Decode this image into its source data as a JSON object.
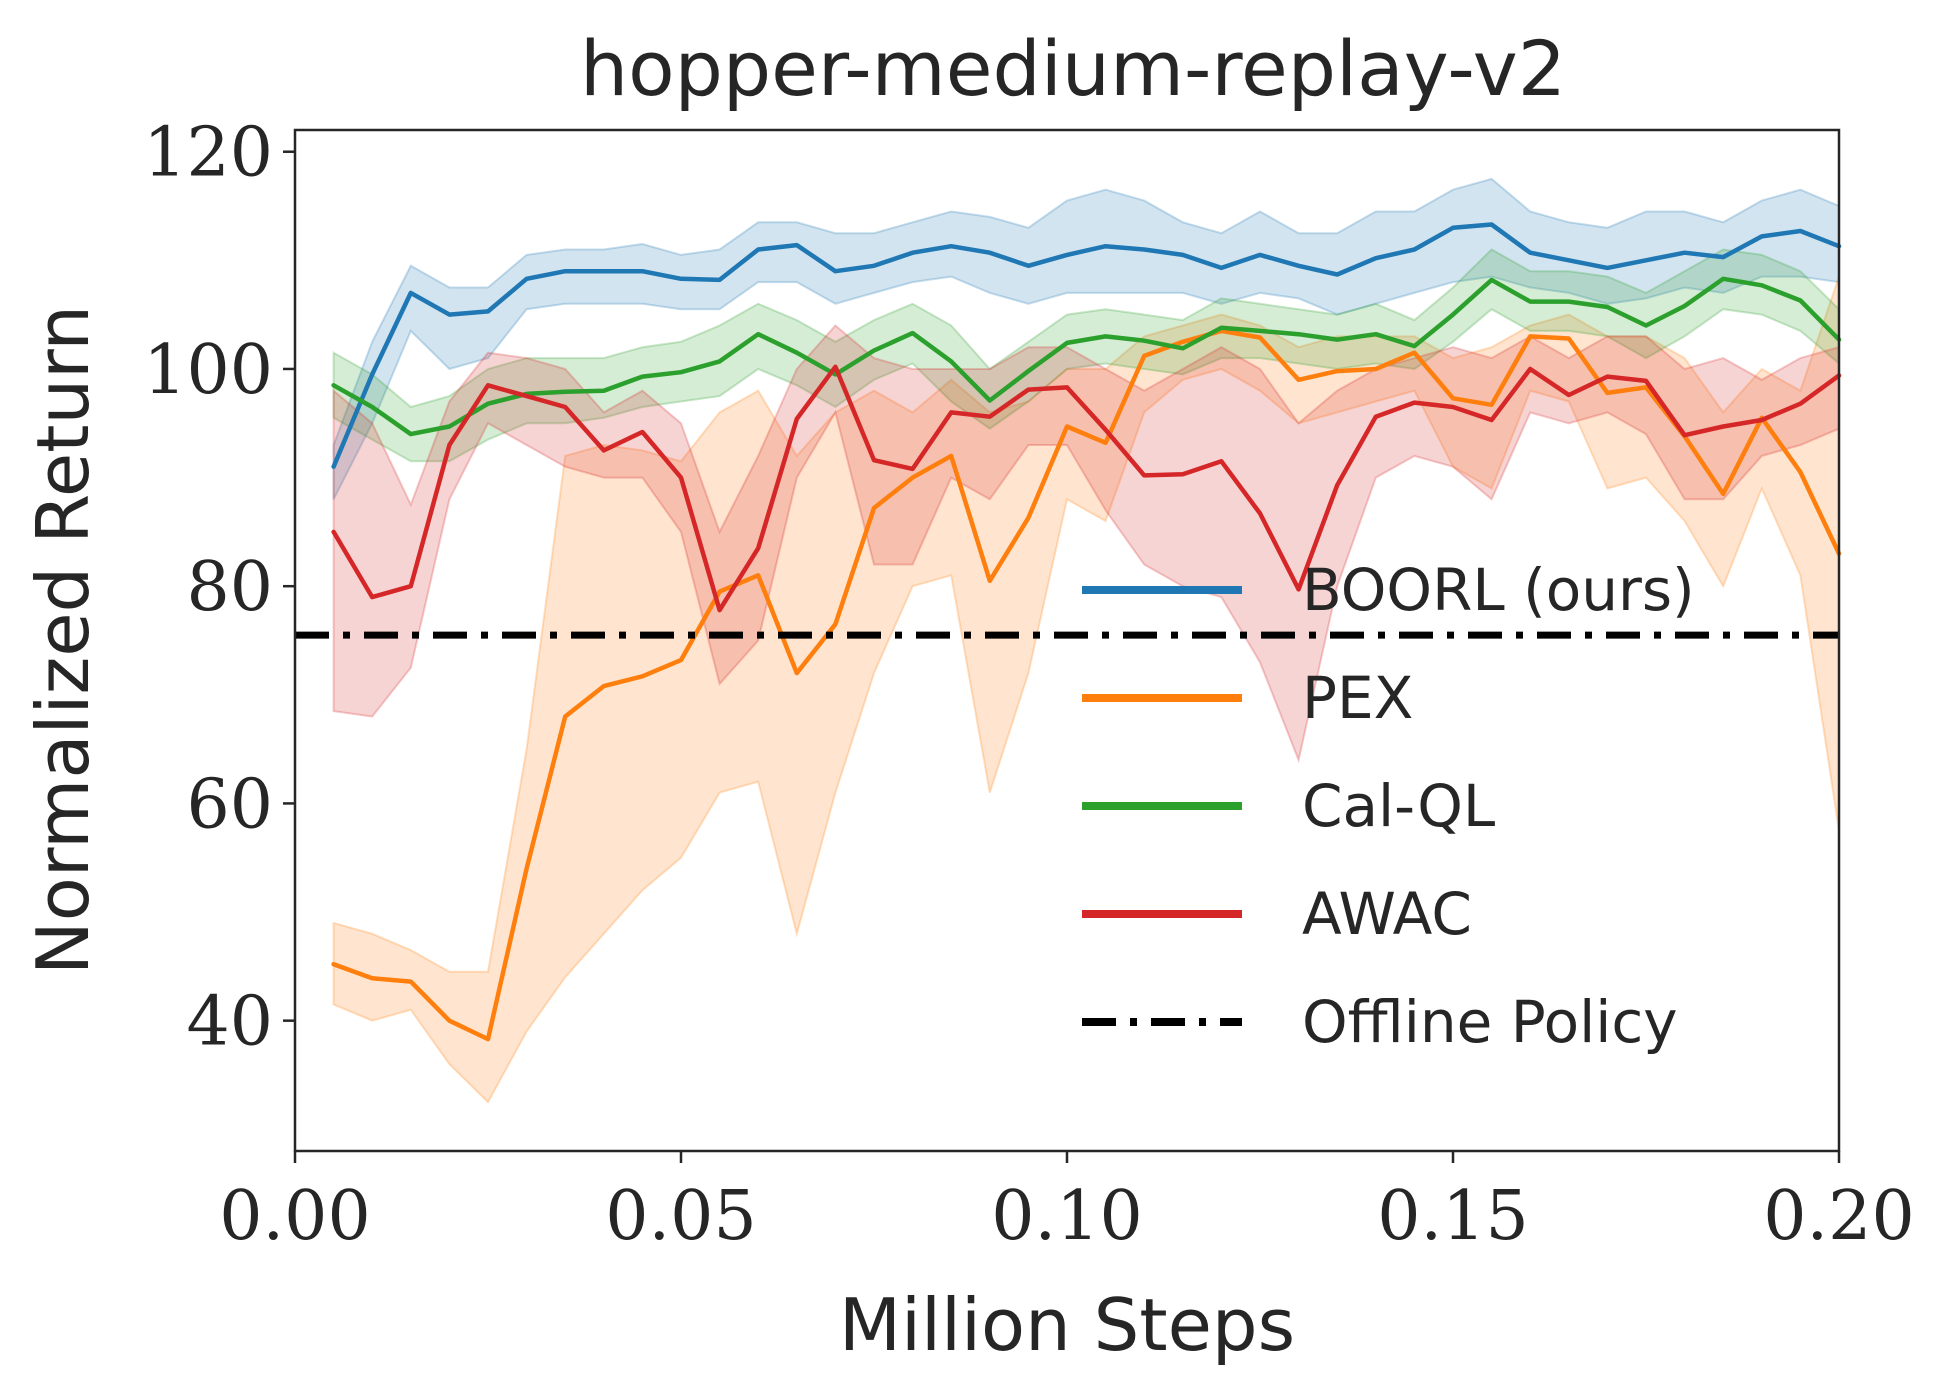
{
  "chart_data": {
    "type": "line",
    "title": "hopper-medium-replay-v2",
    "xlabel": "Million Steps",
    "ylabel": "Normalized Return",
    "xlim": [
      0.0,
      0.2
    ],
    "ylim": [
      28,
      122
    ],
    "xticks": [
      0.0,
      0.05,
      0.1,
      0.15,
      0.2
    ],
    "xtick_labels": [
      "0.00",
      "0.05",
      "0.10",
      "0.15",
      "0.20"
    ],
    "yticks": [
      40,
      60,
      80,
      100,
      120
    ],
    "ytick_labels": [
      "40",
      "60",
      "80",
      "100",
      "120"
    ],
    "grid": false,
    "legend_position": "center-right",
    "x": [
      0.005,
      0.01,
      0.015,
      0.02,
      0.025,
      0.03,
      0.035,
      0.04,
      0.045,
      0.05,
      0.055,
      0.06,
      0.065,
      0.07,
      0.075,
      0.08,
      0.085,
      0.09,
      0.095,
      0.1,
      0.105,
      0.11,
      0.115,
      0.12,
      0.125,
      0.13,
      0.135,
      0.14,
      0.145,
      0.15,
      0.155,
      0.16,
      0.165,
      0.17,
      0.175,
      0.18,
      0.185,
      0.19,
      0.195,
      0.2
    ],
    "series": [
      {
        "name": "BOORL (ours)",
        "color": "#1f77b4",
        "style": "solid",
        "values": [
          91,
          99.5,
          107,
          105,
          105.3,
          108.3,
          109,
          109,
          109,
          108.3,
          108.2,
          111,
          111.4,
          109,
          109.5,
          110.7,
          111.3,
          110.7,
          109.5,
          110.5,
          111.3,
          111,
          110.5,
          109.3,
          110.5,
          109.5,
          108.7,
          110.2,
          111,
          113,
          113.3,
          110.7,
          110,
          109.3,
          110,
          110.7,
          110.3,
          112.2,
          112.7,
          111.3
        ],
        "lower": [
          88,
          95,
          103.5,
          100,
          101,
          105.5,
          106,
          106,
          106,
          105.5,
          105.5,
          108,
          108,
          106,
          107,
          108,
          108.5,
          107,
          106,
          107,
          107,
          107,
          107,
          106,
          107,
          106.5,
          105,
          106,
          107,
          108,
          108.5,
          107.5,
          107,
          106,
          106.5,
          107.5,
          107,
          108.5,
          108.5,
          108
        ],
        "upper": [
          93,
          102.5,
          109.5,
          107.5,
          107.5,
          110.5,
          111,
          111,
          111.5,
          110.5,
          111,
          113.5,
          113.5,
          112.5,
          112.5,
          113.5,
          114.5,
          114,
          113,
          115.5,
          116.5,
          115.5,
          113.5,
          112.5,
          114.5,
          112.5,
          112.5,
          114.5,
          114.5,
          116.5,
          117.5,
          114.5,
          113.5,
          113,
          114.5,
          114.5,
          113.5,
          115.5,
          116.5,
          115
        ]
      },
      {
        "name": "PEX",
        "color": "#ff7f0e",
        "style": "solid",
        "values": [
          45.2,
          43.9,
          43.6,
          40,
          38.3,
          54,
          68,
          70.8,
          71.7,
          73.2,
          79.5,
          81,
          72,
          76.5,
          87.2,
          90,
          92,
          80.5,
          86.3,
          94.7,
          93.2,
          101.2,
          102.5,
          103.5,
          102.9,
          99,
          99.8,
          100,
          101.5,
          97.3,
          96.7,
          103,
          102.8,
          97.8,
          98.3,
          93.8,
          88.5,
          95.5,
          90.5,
          83
        ],
        "lower": [
          41.5,
          40,
          41,
          36,
          32.5,
          39,
          44,
          48,
          52,
          55,
          61,
          62,
          48,
          61,
          72,
          80,
          81,
          61,
          72,
          88,
          86,
          96,
          99,
          100,
          98,
          95,
          96,
          97,
          98,
          91,
          89,
          98,
          97,
          89,
          90,
          86,
          80,
          89,
          81,
          57.5
        ],
        "upper": [
          49,
          48,
          46.5,
          44.5,
          44.5,
          65,
          92,
          93,
          92.5,
          91.5,
          96,
          98,
          92,
          96,
          98,
          96,
          99,
          96,
          97,
          100,
          100,
          103,
          104,
          105,
          104,
          102,
          103,
          103,
          103,
          101,
          102,
          104,
          105,
          103,
          103,
          101,
          96,
          100,
          98,
          108.5
        ]
      },
      {
        "name": "Cal-QL",
        "color": "#2ca02c",
        "style": "solid",
        "values": [
          98.5,
          96.5,
          94,
          94.7,
          96.8,
          97.7,
          97.9,
          98,
          99.3,
          99.7,
          100.7,
          103.2,
          101.5,
          99.5,
          101.7,
          103.3,
          100.7,
          97.1,
          99.8,
          102.4,
          103,
          102.6,
          101.9,
          103.8,
          103.5,
          103.2,
          102.7,
          103.2,
          102.1,
          105,
          108.2,
          106.2,
          106.2,
          105.7,
          104,
          105.8,
          108.3,
          107.7,
          106.3,
          102.7
        ],
        "lower": [
          95.5,
          93.5,
          91.5,
          91.5,
          93.5,
          95,
          95,
          95.5,
          96.5,
          97,
          97.5,
          100,
          98.5,
          96.5,
          99,
          100.5,
          97,
          94.5,
          97,
          100,
          100.5,
          100,
          99.5,
          101,
          101,
          100.5,
          100,
          100.5,
          100,
          102.5,
          105.5,
          103.5,
          103.5,
          103,
          101,
          103,
          105.5,
          105,
          103.5,
          100.5
        ],
        "upper": [
          101.5,
          99.5,
          96.5,
          97.5,
          100,
          101,
          101,
          101,
          102,
          102.5,
          104,
          106,
          104.5,
          102.5,
          104.5,
          106,
          104,
          100,
          102.5,
          105,
          105.5,
          105,
          104.5,
          106.5,
          106,
          105.5,
          105,
          106,
          104.5,
          107.5,
          111,
          109,
          109,
          108.5,
          107,
          109,
          111,
          110.5,
          109,
          105.5
        ]
      },
      {
        "name": "AWAC",
        "color": "#d62728",
        "style": "solid",
        "values": [
          85,
          79,
          80,
          93,
          98.5,
          97.5,
          96.5,
          92.5,
          94.2,
          90,
          77.8,
          83.5,
          95.4,
          100.2,
          91.6,
          90.8,
          96,
          95.6,
          98.1,
          98.3,
          94.4,
          90.2,
          90.3,
          91.5,
          86.7,
          79.7,
          89.3,
          95.6,
          96.9,
          96.5,
          95.3,
          100,
          97.6,
          99.3,
          98.9,
          93.9,
          94.7,
          95.3,
          96.8,
          99.4
        ],
        "lower": [
          68.5,
          68,
          72.5,
          88,
          95,
          93,
          91,
          90,
          90,
          85,
          71,
          75,
          90,
          96,
          82,
          82,
          90,
          88,
          93,
          93,
          87,
          82,
          80,
          79,
          73,
          64,
          80,
          90,
          92,
          91,
          88,
          96,
          95,
          96,
          94,
          88,
          88,
          92,
          93,
          94.5
        ],
        "upper": [
          98,
          95,
          87.5,
          97,
          101.5,
          101,
          100,
          96,
          98,
          95,
          85,
          92,
          100,
          104,
          101,
          100,
          100,
          100,
          102,
          102,
          100,
          98,
          100,
          102,
          100,
          95,
          98,
          100,
          101,
          102,
          101,
          103,
          101,
          103,
          103,
          100,
          101,
          99,
          101,
          102
        ]
      },
      {
        "name": "Offline Policy",
        "color": "#000000",
        "style": "dashdot",
        "constant": 75.5
      }
    ]
  }
}
